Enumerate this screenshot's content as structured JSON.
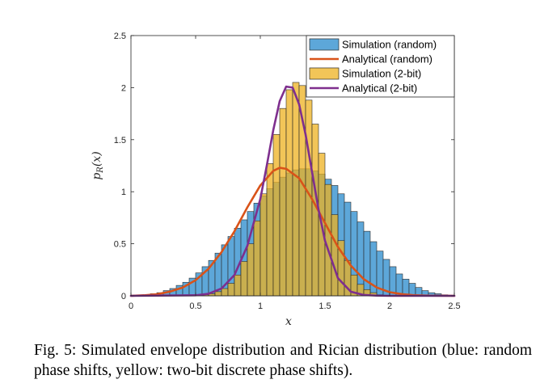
{
  "chart_data": {
    "type": "histogram+line",
    "xlabel": "x",
    "ylabel": "p_R(x)",
    "xlim": [
      0,
      2.5
    ],
    "ylim": [
      0,
      2.5
    ],
    "xticks": [
      "0",
      "0.5",
      "1",
      "1.5",
      "2",
      "2.5"
    ],
    "yticks": [
      "0",
      "0.5",
      "1",
      "1.5",
      "2",
      "2.5"
    ],
    "legend_position": "top-right",
    "bin_width": 0.05,
    "series": [
      {
        "name": "Simulation (random)",
        "kind": "histogram",
        "color": "#4F9FD6",
        "bin_start": 0.1,
        "values": [
          0.01,
          0.02,
          0.03,
          0.05,
          0.07,
          0.1,
          0.13,
          0.17,
          0.22,
          0.28,
          0.34,
          0.41,
          0.49,
          0.57,
          0.65,
          0.73,
          0.81,
          0.89,
          0.96,
          1.03,
          1.09,
          1.14,
          1.18,
          1.21,
          1.22,
          1.22,
          1.2,
          1.17,
          1.12,
          1.06,
          0.98,
          0.9,
          0.81,
          0.71,
          0.62,
          0.52,
          0.43,
          0.35,
          0.28,
          0.21,
          0.16,
          0.12,
          0.08,
          0.05,
          0.03,
          0.02,
          0.01
        ]
      },
      {
        "name": "Analytical (random)",
        "kind": "line",
        "color": "#D95319",
        "x": [
          0,
          0.1,
          0.2,
          0.3,
          0.4,
          0.5,
          0.6,
          0.7,
          0.8,
          0.9,
          1.0,
          1.1,
          1.15,
          1.2,
          1.3,
          1.4,
          1.5,
          1.6,
          1.7,
          1.8,
          1.9,
          2.0,
          2.1,
          2.2,
          2.3,
          2.4,
          2.5
        ],
        "y": [
          0,
          0.005,
          0.015,
          0.04,
          0.08,
          0.15,
          0.26,
          0.42,
          0.62,
          0.85,
          1.06,
          1.2,
          1.23,
          1.22,
          1.13,
          0.93,
          0.7,
          0.47,
          0.29,
          0.16,
          0.08,
          0.035,
          0.015,
          0.005,
          0.002,
          0.001,
          0
        ]
      },
      {
        "name": "Simulation (2-bit)",
        "kind": "histogram",
        "color": "#EDB120",
        "bin_start": 0.55,
        "values": [
          0.01,
          0.02,
          0.04,
          0.07,
          0.12,
          0.2,
          0.33,
          0.5,
          0.72,
          0.98,
          1.27,
          1.55,
          1.8,
          1.98,
          2.05,
          2.02,
          1.88,
          1.65,
          1.37,
          1.07,
          0.78,
          0.53,
          0.34,
          0.2,
          0.11,
          0.06,
          0.03,
          0.01
        ]
      },
      {
        "name": "Analytical (2-bit)",
        "kind": "line",
        "color": "#7E2F8E",
        "x": [
          0,
          0.5,
          0.6,
          0.7,
          0.8,
          0.9,
          1.0,
          1.05,
          1.1,
          1.15,
          1.2,
          1.25,
          1.3,
          1.35,
          1.4,
          1.45,
          1.5,
          1.6,
          1.7,
          1.8,
          1.9,
          2.0,
          2.5
        ],
        "y": [
          0,
          0.005,
          0.02,
          0.07,
          0.2,
          0.48,
          0.93,
          1.25,
          1.59,
          1.87,
          2.01,
          2.0,
          1.84,
          1.55,
          1.19,
          0.83,
          0.53,
          0.17,
          0.04,
          0.008,
          0.002,
          0,
          0
        ]
      }
    ]
  },
  "caption": "Fig. 5: Simulated envelope distribution and Rician distribution (blue: random phase shifts, yellow: two-bit discrete phase shifts)."
}
